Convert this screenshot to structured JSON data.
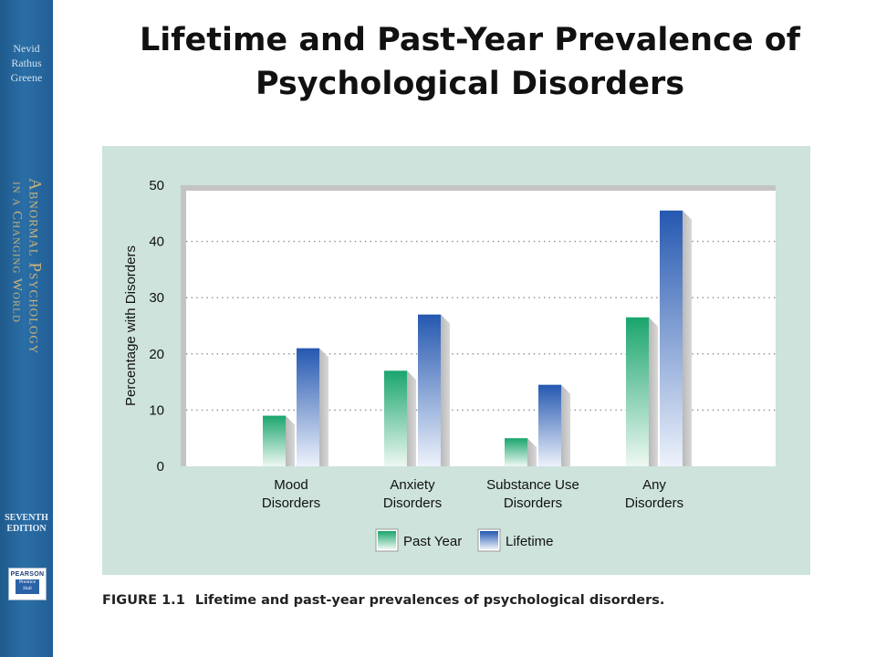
{
  "slide": {
    "title_line1": "Lifetime and Past-Year Prevalence of",
    "title_line2": "Psychological Disorders"
  },
  "spine": {
    "authors": [
      "Nevid",
      "Rathus",
      "Greene"
    ],
    "book_title_line1": "Abnormal Psychology",
    "book_title_line2": "in a Changing World",
    "edition_line1": "SEVENTH",
    "edition_line2": "EDITION",
    "publisher": "PEARSON",
    "imprint_line1": "Prentice",
    "imprint_line2": "Hall"
  },
  "caption": {
    "figure_number": "FIGURE 1.1",
    "text": "Lifetime and past-year prevalences of psychological disorders."
  },
  "colors": {
    "past_year": "#1aa56d",
    "lifetime": "#2558b0",
    "panel_background": "#cde3dc"
  },
  "chart_data": {
    "type": "bar",
    "categories": [
      "Mood\nDisorders",
      "Anxiety\nDisorders",
      "Substance Use\nDisorders",
      "Any\nDisorders"
    ],
    "series": [
      {
        "name": "Past Year",
        "values": [
          9,
          17,
          5,
          26.5
        ]
      },
      {
        "name": "Lifetime",
        "values": [
          21,
          27,
          14.5,
          45.5
        ]
      }
    ],
    "ylabel": "Percentage with Disorders",
    "xlabel": "",
    "ylim": [
      0,
      50
    ],
    "yticks": [
      0,
      10,
      20,
      30,
      40,
      50
    ],
    "grid": true,
    "legend": "bottom-center"
  }
}
